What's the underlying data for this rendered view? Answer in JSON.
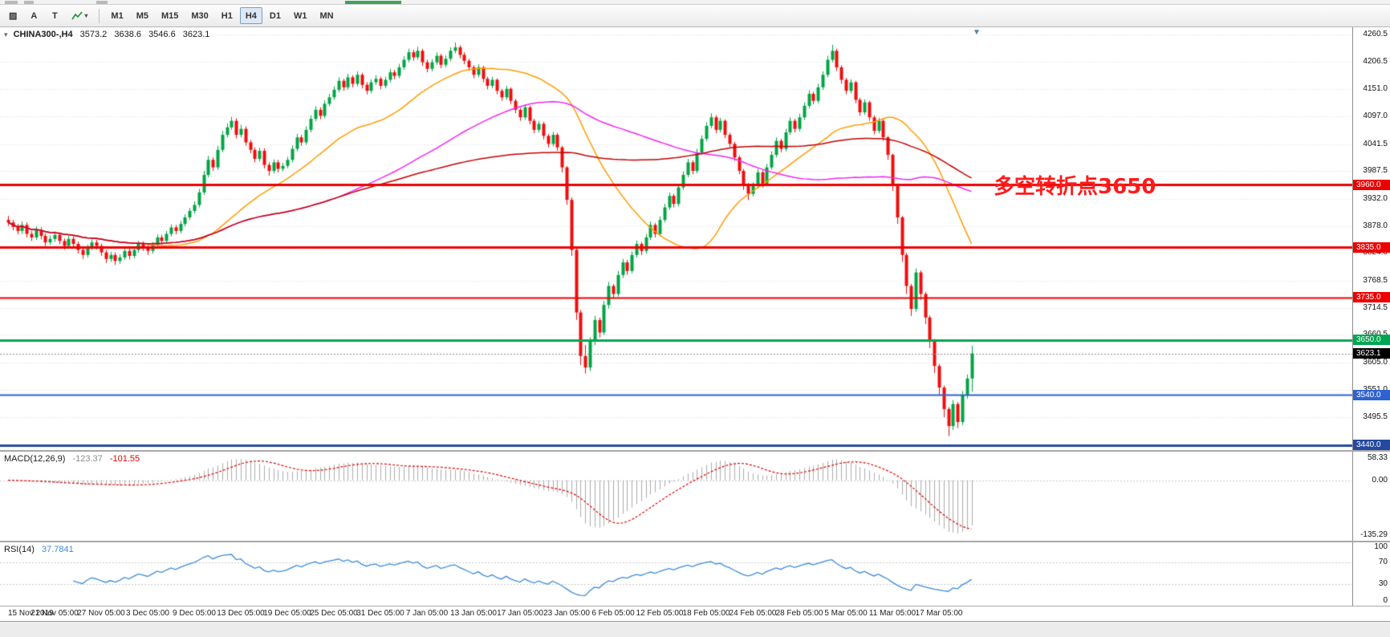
{
  "toolbar": {
    "tools": [
      {
        "label": "▨",
        "name": "objects-tool"
      },
      {
        "label": "A",
        "name": "text-annotation-tool"
      },
      {
        "label": "T",
        "name": "label-tool"
      },
      {
        "label": "▾",
        "name": "indicators-menu"
      }
    ],
    "timeframes": [
      {
        "label": "M1"
      },
      {
        "label": "M5"
      },
      {
        "label": "M15"
      },
      {
        "label": "M30"
      },
      {
        "label": "H1"
      },
      {
        "label": "H4",
        "active": true
      },
      {
        "label": "D1"
      },
      {
        "label": "W1"
      },
      {
        "label": "MN"
      }
    ]
  },
  "chart": {
    "header": {
      "symbol": "CHINA300-,H4",
      "open": "3573.2",
      "high": "3638.6",
      "low": "3546.6",
      "close": "3623.1"
    },
    "annotation": {
      "text": "多空转折点3650",
      "color": "#FF1A1A"
    },
    "colors": {
      "up": "#00A445",
      "down": "#F20C0C",
      "macd_hist": "#ABABAB",
      "macd_signal": "#E00000",
      "rsi": "#3C8BD9",
      "grid": "#DCDCDC"
    }
  },
  "chart_data": {
    "type": "candlestick",
    "symbol": "CHINA300-",
    "timeframe": "H4",
    "y_axis": {
      "min": 3430,
      "max": 4275,
      "labels": [
        "4260.5",
        "4206.5",
        "4151.0",
        "4097.0",
        "4041.5",
        "3987.5",
        "3932.0",
        "3878.0",
        "3824.0",
        "3768.5",
        "3714.5",
        "3660.5",
        "3605.0",
        "3551.0",
        "3495.5",
        "3441.5"
      ]
    },
    "x_labels": [
      "15 Nov 2019",
      "21 Nov 05:00",
      "27 Nov 05:00",
      "3 Dec 05:00",
      "9 Dec 05:00",
      "13 Dec 05:00",
      "19 Dec 05:00",
      "25 Dec 05:00",
      "31 Dec 05:00",
      "7 Jan 05:00",
      "13 Jan 05:00",
      "17 Jan 05:00",
      "23 Jan 05:00",
      "6 Feb 05:00",
      "12 Feb 05:00",
      "18 Feb 05:00",
      "24 Feb 05:00",
      "28 Feb 05:00",
      "5 Mar 05:00",
      "11 Mar 05:00",
      "17 Mar 05:00"
    ],
    "ohlc": [
      [
        3890,
        3898,
        3878,
        3885
      ],
      [
        3885,
        3890,
        3869,
        3876
      ],
      [
        3876,
        3882,
        3861,
        3868
      ],
      [
        3868,
        3887,
        3862,
        3880
      ],
      [
        3880,
        3885,
        3855,
        3862
      ],
      [
        3862,
        3868,
        3848,
        3855
      ],
      [
        3855,
        3877,
        3850,
        3870
      ],
      [
        3870,
        3875,
        3851,
        3858
      ],
      [
        3858,
        3863,
        3838,
        3845
      ],
      [
        3845,
        3859,
        3840,
        3852
      ],
      [
        3852,
        3867,
        3846,
        3860
      ],
      [
        3860,
        3865,
        3841,
        3848
      ],
      [
        3848,
        3853,
        3831,
        3838
      ],
      [
        3838,
        3858,
        3833,
        3852
      ],
      [
        3852,
        3857,
        3835,
        3842
      ],
      [
        3842,
        3847,
        3823,
        3830
      ],
      [
        3830,
        3835,
        3812,
        3820
      ],
      [
        3820,
        3841,
        3815,
        3835
      ],
      [
        3835,
        3851,
        3830,
        3845
      ],
      [
        3845,
        3850,
        3831,
        3838
      ],
      [
        3838,
        3843,
        3818,
        3825
      ],
      [
        3825,
        3830,
        3804,
        3812
      ],
      [
        3812,
        3826,
        3806,
        3820
      ],
      [
        3820,
        3825,
        3800,
        3808
      ],
      [
        3808,
        3821,
        3802,
        3815
      ],
      [
        3815,
        3834,
        3810,
        3828
      ],
      [
        3828,
        3833,
        3811,
        3818
      ],
      [
        3818,
        3836,
        3813,
        3830
      ],
      [
        3830,
        3848,
        3825,
        3842
      ],
      [
        3842,
        3847,
        3828,
        3835
      ],
      [
        3835,
        3840,
        3820,
        3828
      ],
      [
        3828,
        3846,
        3823,
        3840
      ],
      [
        3840,
        3861,
        3835,
        3855
      ],
      [
        3855,
        3860,
        3841,
        3848
      ],
      [
        3848,
        3868,
        3843,
        3862
      ],
      [
        3862,
        3881,
        3857,
        3875
      ],
      [
        3875,
        3880,
        3861,
        3868
      ],
      [
        3868,
        3888,
        3863,
        3882
      ],
      [
        3882,
        3901,
        3877,
        3895
      ],
      [
        3895,
        3914,
        3890,
        3908
      ],
      [
        3908,
        3927,
        3903,
        3920
      ],
      [
        3920,
        3952,
        3915,
        3945
      ],
      [
        3945,
        3988,
        3940,
        3980
      ],
      [
        3980,
        4018,
        3975,
        4010
      ],
      [
        4010,
        4015,
        3988,
        3995
      ],
      [
        3995,
        4038,
        3990,
        4030
      ],
      [
        4030,
        4068,
        4025,
        4060
      ],
      [
        4060,
        4083,
        4055,
        4075
      ],
      [
        4075,
        4096,
        4070,
        4088
      ],
      [
        4088,
        4093,
        4053,
        4060
      ],
      [
        4060,
        4080,
        4055,
        4072
      ],
      [
        4072,
        4077,
        4038,
        4045
      ],
      [
        4045,
        4050,
        4023,
        4030
      ],
      [
        4030,
        4035,
        4005,
        4012
      ],
      [
        4012,
        4034,
        4007,
        4028
      ],
      [
        4028,
        4033,
        3993,
        4000
      ],
      [
        4000,
        4005,
        3978,
        3988
      ],
      [
        3988,
        4011,
        3983,
        4005
      ],
      [
        4005,
        4010,
        3985,
        3992
      ],
      [
        3992,
        4004,
        3987,
        3998
      ],
      [
        3998,
        4016,
        3993,
        4010
      ],
      [
        4010,
        4039,
        4005,
        4032
      ],
      [
        4032,
        4062,
        4027,
        4055
      ],
      [
        4055,
        4060,
        4038,
        4045
      ],
      [
        4045,
        4077,
        4040,
        4070
      ],
      [
        4070,
        4099,
        4065,
        4092
      ],
      [
        4092,
        4117,
        4087,
        4110
      ],
      [
        4110,
        4115,
        4091,
        4098
      ],
      [
        4098,
        4129,
        4093,
        4122
      ],
      [
        4122,
        4142,
        4117,
        4135
      ],
      [
        4135,
        4157,
        4130,
        4150
      ],
      [
        4150,
        4175,
        4145,
        4168
      ],
      [
        4168,
        4172,
        4148,
        4155
      ],
      [
        4155,
        4182,
        4150,
        4175
      ],
      [
        4175,
        4179,
        4155,
        4162
      ],
      [
        4162,
        4187,
        4157,
        4180
      ],
      [
        4180,
        4184,
        4153,
        4160
      ],
      [
        4160,
        4165,
        4141,
        4148
      ],
      [
        4148,
        4171,
        4143,
        4165
      ],
      [
        4165,
        4179,
        4160,
        4172
      ],
      [
        4172,
        4176,
        4151,
        4158
      ],
      [
        4158,
        4176,
        4153,
        4170
      ],
      [
        4170,
        4192,
        4165,
        4185
      ],
      [
        4185,
        4190,
        4171,
        4178
      ],
      [
        4178,
        4202,
        4173,
        4195
      ],
      [
        4195,
        4217,
        4190,
        4210
      ],
      [
        4210,
        4232,
        4205,
        4225
      ],
      [
        4225,
        4230,
        4208,
        4215
      ],
      [
        4215,
        4236,
        4210,
        4228
      ],
      [
        4228,
        4232,
        4198,
        4205
      ],
      [
        4205,
        4210,
        4185,
        4192
      ],
      [
        4192,
        4211,
        4187,
        4205
      ],
      [
        4205,
        4225,
        4200,
        4218
      ],
      [
        4218,
        4222,
        4193,
        4200
      ],
      [
        4200,
        4219,
        4195,
        4212
      ],
      [
        4212,
        4235,
        4207,
        4228
      ],
      [
        4228,
        4245,
        4223,
        4235
      ],
      [
        4235,
        4239,
        4213,
        4220
      ],
      [
        4220,
        4225,
        4201,
        4208
      ],
      [
        4208,
        4212,
        4188,
        4195
      ],
      [
        4195,
        4199,
        4173,
        4180
      ],
      [
        4180,
        4201,
        4175,
        4195
      ],
      [
        4195,
        4198,
        4165,
        4172
      ],
      [
        4172,
        4176,
        4151,
        4158
      ],
      [
        4158,
        4176,
        4153,
        4170
      ],
      [
        4170,
        4173,
        4141,
        4148
      ],
      [
        4148,
        4152,
        4128,
        4135
      ],
      [
        4135,
        4158,
        4130,
        4152
      ],
      [
        4152,
        4155,
        4121,
        4128
      ],
      [
        4128,
        4132,
        4103,
        4110
      ],
      [
        4110,
        4114,
        4088,
        4095
      ],
      [
        4095,
        4121,
        4090,
        4115
      ],
      [
        4115,
        4118,
        4081,
        4088
      ],
      [
        4088,
        4092,
        4063,
        4070
      ],
      [
        4070,
        4088,
        4065,
        4082
      ],
      [
        4082,
        4086,
        4051,
        4058
      ],
      [
        4058,
        4062,
        4035,
        4042
      ],
      [
        4042,
        4066,
        4037,
        4060
      ],
      [
        4060,
        4064,
        4028,
        4035
      ],
      [
        4035,
        4038,
        3985,
        3995
      ],
      [
        3995,
        3998,
        3920,
        3930
      ],
      [
        3930,
        3935,
        3818,
        3830
      ],
      [
        3830,
        3835,
        3690,
        3705
      ],
      [
        3705,
        3710,
        3600,
        3618
      ],
      [
        3618,
        3640,
        3583,
        3595
      ],
      [
        3595,
        3655,
        3588,
        3648
      ],
      [
        3648,
        3698,
        3640,
        3690
      ],
      [
        3690,
        3695,
        3655,
        3665
      ],
      [
        3665,
        3728,
        3660,
        3720
      ],
      [
        3720,
        3766,
        3713,
        3758
      ],
      [
        3758,
        3762,
        3733,
        3742
      ],
      [
        3742,
        3788,
        3737,
        3780
      ],
      [
        3780,
        3812,
        3774,
        3805
      ],
      [
        3805,
        3810,
        3780,
        3788
      ],
      [
        3788,
        3827,
        3783,
        3820
      ],
      [
        3820,
        3849,
        3815,
        3842
      ],
      [
        3842,
        3846,
        3820,
        3828
      ],
      [
        3828,
        3862,
        3823,
        3855
      ],
      [
        3855,
        3887,
        3850,
        3880
      ],
      [
        3880,
        3884,
        3855,
        3862
      ],
      [
        3862,
        3897,
        3857,
        3890
      ],
      [
        3890,
        3922,
        3885,
        3915
      ],
      [
        3915,
        3945,
        3910,
        3938
      ],
      [
        3938,
        3942,
        3915,
        3922
      ],
      [
        3922,
        3962,
        3917,
        3955
      ],
      [
        3955,
        3987,
        3950,
        3980
      ],
      [
        3980,
        4012,
        3975,
        4005
      ],
      [
        4005,
        4009,
        3981,
        3988
      ],
      [
        3988,
        4032,
        3983,
        4025
      ],
      [
        4025,
        4059,
        4020,
        4052
      ],
      [
        4052,
        4085,
        4047,
        4078
      ],
      [
        4078,
        4103,
        4073,
        4095
      ],
      [
        4095,
        4099,
        4063,
        4070
      ],
      [
        4070,
        4094,
        4065,
        4088
      ],
      [
        4088,
        4091,
        4053,
        4060
      ],
      [
        4060,
        4064,
        4035,
        4042
      ],
      [
        4042,
        4046,
        4008,
        4015
      ],
      [
        4015,
        4019,
        3981,
        3988
      ],
      [
        3988,
        3992,
        3950,
        3960
      ],
      [
        3960,
        3964,
        3930,
        3942
      ],
      [
        3942,
        3965,
        3937,
        3958
      ],
      [
        3958,
        3992,
        3953,
        3985
      ],
      [
        3985,
        3989,
        3955,
        3962
      ],
      [
        3962,
        4002,
        3957,
        3995
      ],
      [
        3995,
        4027,
        3990,
        4020
      ],
      [
        4020,
        4055,
        4015,
        4048
      ],
      [
        4048,
        4052,
        4025,
        4032
      ],
      [
        4032,
        4072,
        4027,
        4065
      ],
      [
        4065,
        4095,
        4060,
        4088
      ],
      [
        4088,
        4092,
        4065,
        4072
      ],
      [
        4072,
        4102,
        4067,
        4095
      ],
      [
        4095,
        4125,
        4090,
        4118
      ],
      [
        4118,
        4149,
        4113,
        4142
      ],
      [
        4142,
        4146,
        4121,
        4128
      ],
      [
        4128,
        4162,
        4123,
        4155
      ],
      [
        4155,
        4187,
        4150,
        4180
      ],
      [
        4180,
        4218,
        4175,
        4210
      ],
      [
        4210,
        4240,
        4205,
        4228
      ],
      [
        4228,
        4232,
        4188,
        4195
      ],
      [
        4195,
        4199,
        4162,
        4170
      ],
      [
        4170,
        4174,
        4141,
        4148
      ],
      [
        4148,
        4171,
        4143,
        4165
      ],
      [
        4165,
        4168,
        4123,
        4130
      ],
      [
        4130,
        4134,
        4098,
        4105
      ],
      [
        4105,
        4131,
        4100,
        4125
      ],
      [
        4125,
        4128,
        4088,
        4095
      ],
      [
        4095,
        4099,
        4061,
        4068
      ],
      [
        4068,
        4094,
        4063,
        4088
      ],
      [
        4088,
        4091,
        4048,
        4055
      ],
      [
        4055,
        4058,
        4010,
        4020
      ],
      [
        4020,
        4023,
        3948,
        3960
      ],
      [
        3960,
        3963,
        3882,
        3895
      ],
      [
        3895,
        3898,
        3806,
        3820
      ],
      [
        3820,
        3824,
        3742,
        3758
      ],
      [
        3758,
        3762,
        3698,
        3712
      ],
      [
        3712,
        3793,
        3706,
        3785
      ],
      [
        3785,
        3789,
        3730,
        3742
      ],
      [
        3742,
        3746,
        3682,
        3695
      ],
      [
        3695,
        3699,
        3634,
        3648
      ],
      [
        3648,
        3652,
        3584,
        3598
      ],
      [
        3598,
        3602,
        3540,
        3555
      ],
      [
        3555,
        3559,
        3496,
        3512
      ],
      [
        3512,
        3516,
        3458,
        3478
      ],
      [
        3478,
        3530,
        3470,
        3522
      ],
      [
        3522,
        3526,
        3474,
        3486
      ],
      [
        3486,
        3548,
        3480,
        3540
      ],
      [
        3540,
        3581,
        3533,
        3573
      ],
      [
        3573.2,
        3638.6,
        3546.6,
        3623.1
      ]
    ],
    "ma_lines": [
      {
        "period": 30,
        "color": "#FF9C00"
      },
      {
        "period": 72,
        "color": "#F026F0"
      },
      {
        "period": 120,
        "color": "#C40000"
      }
    ],
    "levels": [
      {
        "price": 3960.0,
        "label": "3960.0",
        "color": "#EE0000",
        "width": 3
      },
      {
        "price": 3835.0,
        "label": "3835.0",
        "color": "#EE0000",
        "width": 3
      },
      {
        "price": 3735.0,
        "label": "3735.0",
        "color": "#EE0000",
        "width": 2
      },
      {
        "price": 3650.0,
        "label": "3650.0",
        "color": "#00A651",
        "width": 3
      },
      {
        "price": 3540.0,
        "label": "3540.0",
        "color": "#2E62D0",
        "width": 2
      },
      {
        "price": 3440.0,
        "label": "3440.0",
        "color": "#24499E",
        "width": 3
      }
    ],
    "current_price": {
      "value": 3623.1,
      "label": "3623.1"
    },
    "macd": {
      "title": "MACD(12,26,9)",
      "value": "-123.37",
      "signal_value": "-101.55",
      "axis": [
        "58.33",
        "0.00",
        "-135.29"
      ]
    },
    "rsi": {
      "title": "RSI(14)",
      "value": "37.7841",
      "axis": [
        "100",
        "70",
        "30",
        "0"
      ],
      "levels": [
        70,
        30
      ]
    }
  }
}
